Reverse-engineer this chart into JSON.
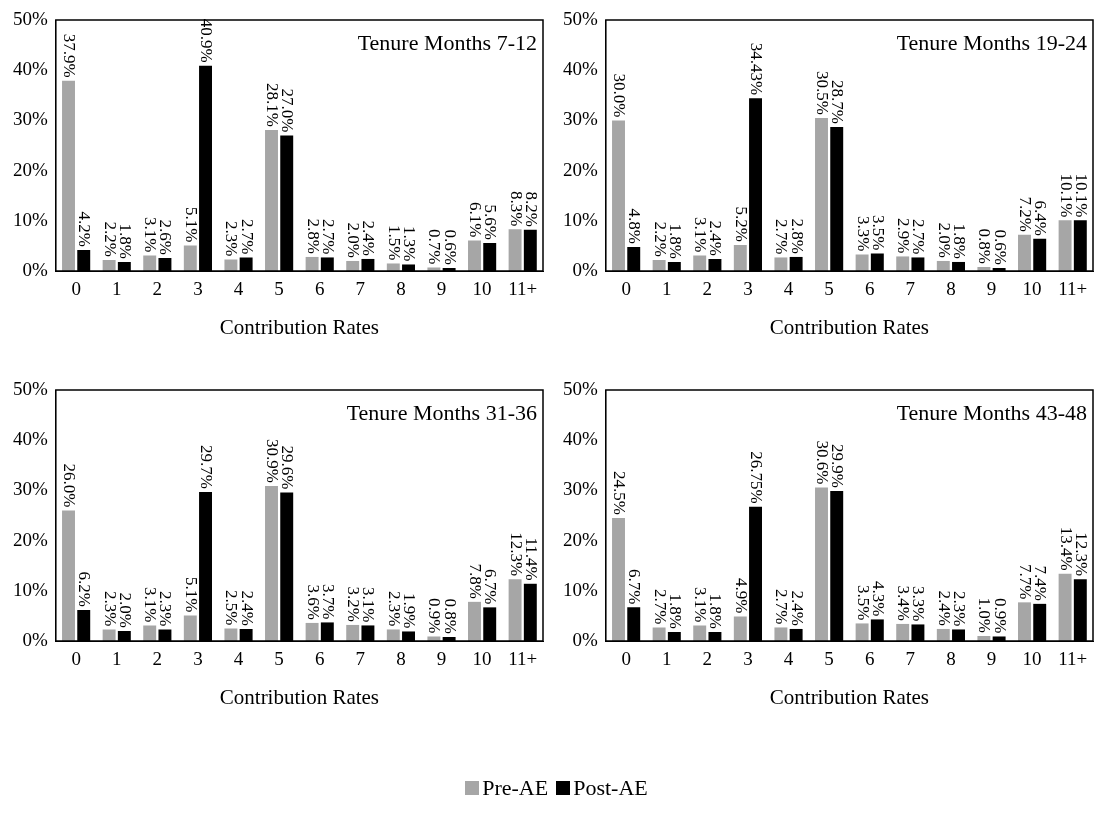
{
  "chart_data": [
    {
      "type": "bar",
      "title": "Tenure Months 7-12",
      "xlabel": "Contribution Rates",
      "categories": [
        "0",
        "1",
        "2",
        "3",
        "4",
        "5",
        "6",
        "7",
        "8",
        "9",
        "10",
        "11+"
      ],
      "ylim": [
        0,
        50
      ],
      "yticks": [
        {
          "value": 0,
          "label": "0%"
        },
        {
          "value": 10,
          "label": "10%"
        },
        {
          "value": 20,
          "label": "20%"
        },
        {
          "value": 30,
          "label": "30%"
        },
        {
          "value": 40,
          "label": "40%"
        },
        {
          "value": 50,
          "label": "50%"
        }
      ],
      "grid": false,
      "legend": "bottom",
      "series": [
        {
          "name": "Pre-AE",
          "color": "#a6a6a6",
          "values": [
            37.9,
            2.2,
            3.1,
            5.1,
            2.3,
            28.1,
            2.8,
            2.0,
            1.5,
            0.7,
            6.1,
            8.3
          ],
          "value_labels": [
            "37.9%",
            "2.2%",
            "3.1%",
            "5.1%",
            "2.3%",
            "28.1%",
            "2.8%",
            "2.0%",
            "1.5%",
            "0.7%",
            "6.1%",
            "8.3%"
          ]
        },
        {
          "name": "Post-AE",
          "color": "#000000",
          "values": [
            4.2,
            1.8,
            2.6,
            40.9,
            2.7,
            27.0,
            2.7,
            2.4,
            1.3,
            0.6,
            5.6,
            8.2
          ],
          "value_labels": [
            "4.2%",
            "1.8%",
            "2.6%",
            "40.9%",
            "2.7%",
            "27.0%",
            "2.7%",
            "2.4%",
            "1.3%",
            "0.6%",
            "5.6%",
            "8.2%"
          ]
        }
      ]
    },
    {
      "type": "bar",
      "title": "Tenure Months 19-24",
      "xlabel": "Contribution Rates",
      "categories": [
        "0",
        "1",
        "2",
        "3",
        "4",
        "5",
        "6",
        "7",
        "8",
        "9",
        "10",
        "11+"
      ],
      "ylim": [
        0,
        50
      ],
      "yticks": [
        {
          "value": 0,
          "label": "0%"
        },
        {
          "value": 10,
          "label": "10%"
        },
        {
          "value": 20,
          "label": "20%"
        },
        {
          "value": 30,
          "label": "30%"
        },
        {
          "value": 40,
          "label": "40%"
        },
        {
          "value": 50,
          "label": "50%"
        }
      ],
      "grid": false,
      "series": [
        {
          "color": "#a6a6a6",
          "values": [
            30.0,
            2.2,
            3.1,
            5.2,
            2.7,
            30.5,
            3.3,
            2.9,
            2.0,
            0.8,
            7.2,
            10.1
          ],
          "value_labels": [
            "30.0%",
            "2.2%",
            "3.1%",
            "5.2%",
            "2.7%",
            "30.5%",
            "3.3%",
            "2.9%",
            "2.0%",
            "0.8%",
            "7.2%",
            "10.1%"
          ]
        },
        {
          "color": "#000000",
          "values": [
            4.8,
            1.8,
            2.4,
            34.43,
            2.8,
            28.7,
            3.5,
            2.7,
            1.8,
            0.6,
            6.4,
            10.1
          ],
          "value_labels": [
            "4.8%",
            "1.8%",
            "2.4%",
            "34.43%",
            "2.8%",
            "28.7%",
            "3.5%",
            "2.7%",
            "1.8%",
            "0.6%",
            "6.4%",
            "10.1%"
          ]
        }
      ]
    },
    {
      "type": "bar",
      "title": "Tenure Months 31-36",
      "xlabel": "Contribution Rates",
      "categories": [
        "0",
        "1",
        "2",
        "3",
        "4",
        "5",
        "6",
        "7",
        "8",
        "9",
        "10",
        "11+"
      ],
      "ylim": [
        0,
        50
      ],
      "yticks": [
        {
          "value": 0,
          "label": "0%"
        },
        {
          "value": 10,
          "label": "10%"
        },
        {
          "value": 20,
          "label": "20%"
        },
        {
          "value": 30,
          "label": "30%"
        },
        {
          "value": 40,
          "label": "40%"
        },
        {
          "value": 50,
          "label": "50%"
        }
      ],
      "grid": false,
      "series": [
        {
          "color": "#a6a6a6",
          "values": [
            26.0,
            2.3,
            3.1,
            5.1,
            2.5,
            30.9,
            3.6,
            3.2,
            2.3,
            0.9,
            7.8,
            12.3
          ],
          "value_labels": [
            "26.0%",
            "2.3%",
            "3.1%",
            "5.1%",
            "2.5%",
            "30.9%",
            "3.6%",
            "3.2%",
            "2.3%",
            "0.9%",
            "7.8%",
            "12.3%"
          ]
        },
        {
          "color": "#000000",
          "values": [
            6.2,
            2.0,
            2.3,
            29.7,
            2.4,
            29.6,
            3.7,
            3.1,
            1.9,
            0.8,
            6.7,
            11.4
          ],
          "value_labels": [
            "6.2%",
            "2.0%",
            "2.3%",
            "29.7%",
            "2.4%",
            "29.6%",
            "3.7%",
            "3.1%",
            "1.9%",
            "0.8%",
            "6.7%",
            "11.4%"
          ]
        }
      ]
    },
    {
      "type": "bar",
      "title": "Tenure Months 43-48",
      "xlabel": "Contribution Rates",
      "categories": [
        "0",
        "1",
        "2",
        "3",
        "4",
        "5",
        "6",
        "7",
        "8",
        "9",
        "10",
        "11+"
      ],
      "ylim": [
        0,
        50
      ],
      "yticks": [
        {
          "value": 0,
          "label": "0%"
        },
        {
          "value": 10,
          "label": "10%"
        },
        {
          "value": 20,
          "label": "20%"
        },
        {
          "value": 30,
          "label": "30%"
        },
        {
          "value": 40,
          "label": "40%"
        },
        {
          "value": 50,
          "label": "50%"
        }
      ],
      "grid": false,
      "series": [
        {
          "color": "#a6a6a6",
          "values": [
            24.5,
            2.7,
            3.1,
            4.9,
            2.7,
            30.6,
            3.5,
            3.4,
            2.4,
            1.0,
            7.7,
            13.4
          ],
          "value_labels": [
            "24.5%",
            "2.7%",
            "3.1%",
            "4.9%",
            "2.7%",
            "30.6%",
            "3.5%",
            "3.4%",
            "2.4%",
            "1.0%",
            "7.7%",
            "13.4%"
          ]
        },
        {
          "color": "#000000",
          "values": [
            6.7,
            1.8,
            1.8,
            26.75,
            2.4,
            29.9,
            4.3,
            3.3,
            2.3,
            0.9,
            7.4,
            12.3
          ],
          "value_labels": [
            "6.7%",
            "1.8%",
            "1.8%",
            "26.75%",
            "2.4%",
            "29.9%",
            "4.3%",
            "3.3%",
            "2.3%",
            "0.9%",
            "7.4%",
            "12.3%"
          ]
        }
      ]
    }
  ]
}
